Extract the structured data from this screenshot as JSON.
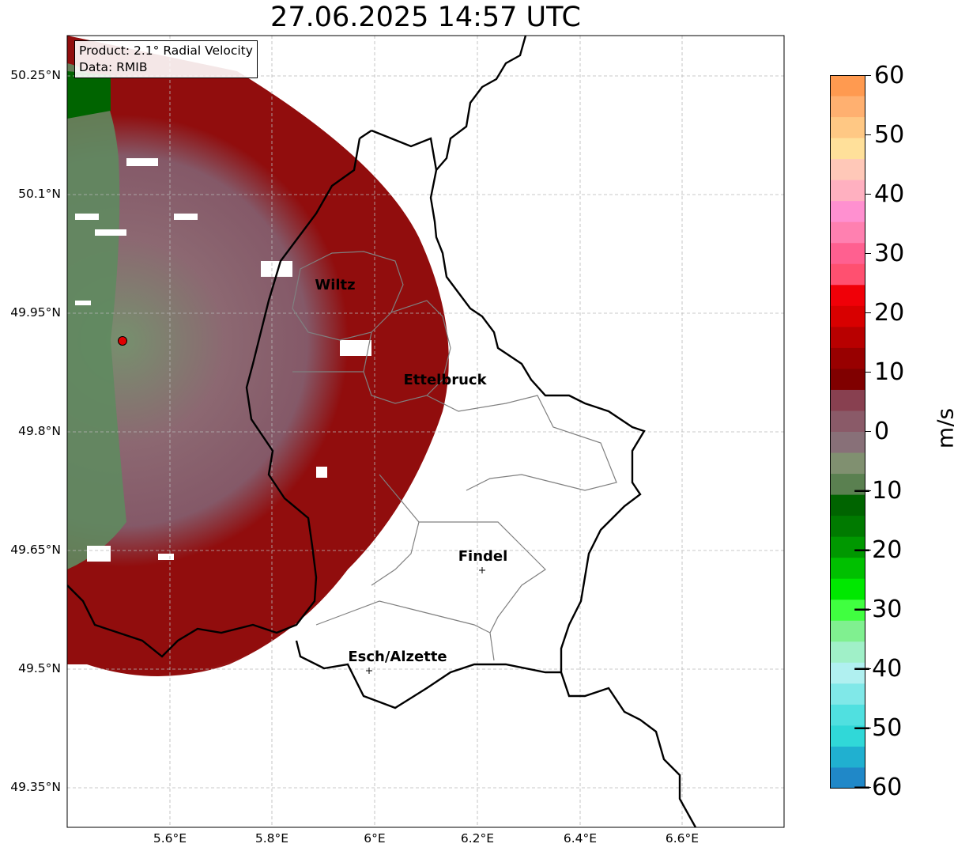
{
  "title": "27.06.2025 14:57 UTC",
  "info": {
    "product": "Product: 2.1° Radial Velocity",
    "data": "Data: RMIB"
  },
  "lat_ticks": [
    "50.25°N",
    "50.1°N",
    "49.95°N",
    "49.8°N",
    "49.65°N",
    "49.5°N",
    "49.35°N"
  ],
  "lon_ticks": [
    "5.6°E",
    "5.8°E",
    "6°E",
    "6.2°E",
    "6.4°E",
    "6.6°E"
  ],
  "cities": [
    {
      "name": "Wiltz",
      "lon": 5.93,
      "lat": 49.966
    },
    {
      "name": "Ettelbruck",
      "lon": 6.1,
      "lat": 49.847
    },
    {
      "name": "Findel",
      "lon": 6.21,
      "lat": 49.627
    },
    {
      "name": "Esch/Alzette",
      "lon": 5.98,
      "lat": 49.5
    }
  ],
  "radar_site": {
    "lon": 5.505,
    "lat": 49.914,
    "color": "#e00000"
  },
  "colorbar": {
    "unit": "m/s",
    "ticks": [
      "60",
      "50",
      "40",
      "30",
      "20",
      "10",
      "0",
      "−10",
      "−20",
      "−30",
      "−40",
      "−50",
      "−60"
    ],
    "range": [
      -60,
      60
    ],
    "colors_top_to_bottom": [
      "#ff9a50",
      "#ffb070",
      "#ffc884",
      "#ffe09a",
      "#ffc8b8",
      "#ffb0c0",
      "#ff90d0",
      "#ff80b0",
      "#ff6090",
      "#ff5070",
      "#f00008",
      "#d80000",
      "#b80000",
      "#980000",
      "#800000",
      "#884050",
      "#8a5a68",
      "#887078",
      "#809070",
      "#5a8050",
      "#006400",
      "#007a00",
      "#009800",
      "#00c000",
      "#00e800",
      "#40ff40",
      "#80f090",
      "#a0f0c8",
      "#b0f0f0",
      "#80e8e8",
      "#50e0e0",
      "#30d8d8",
      "#20b0d0",
      "#2088c8"
    ]
  },
  "colors": {
    "border": "#000000",
    "district": "#808080",
    "grid": "#b8b8b8",
    "outbound": "#8b0000",
    "weak": "#86606a",
    "inbound": "#5f8a5f"
  }
}
